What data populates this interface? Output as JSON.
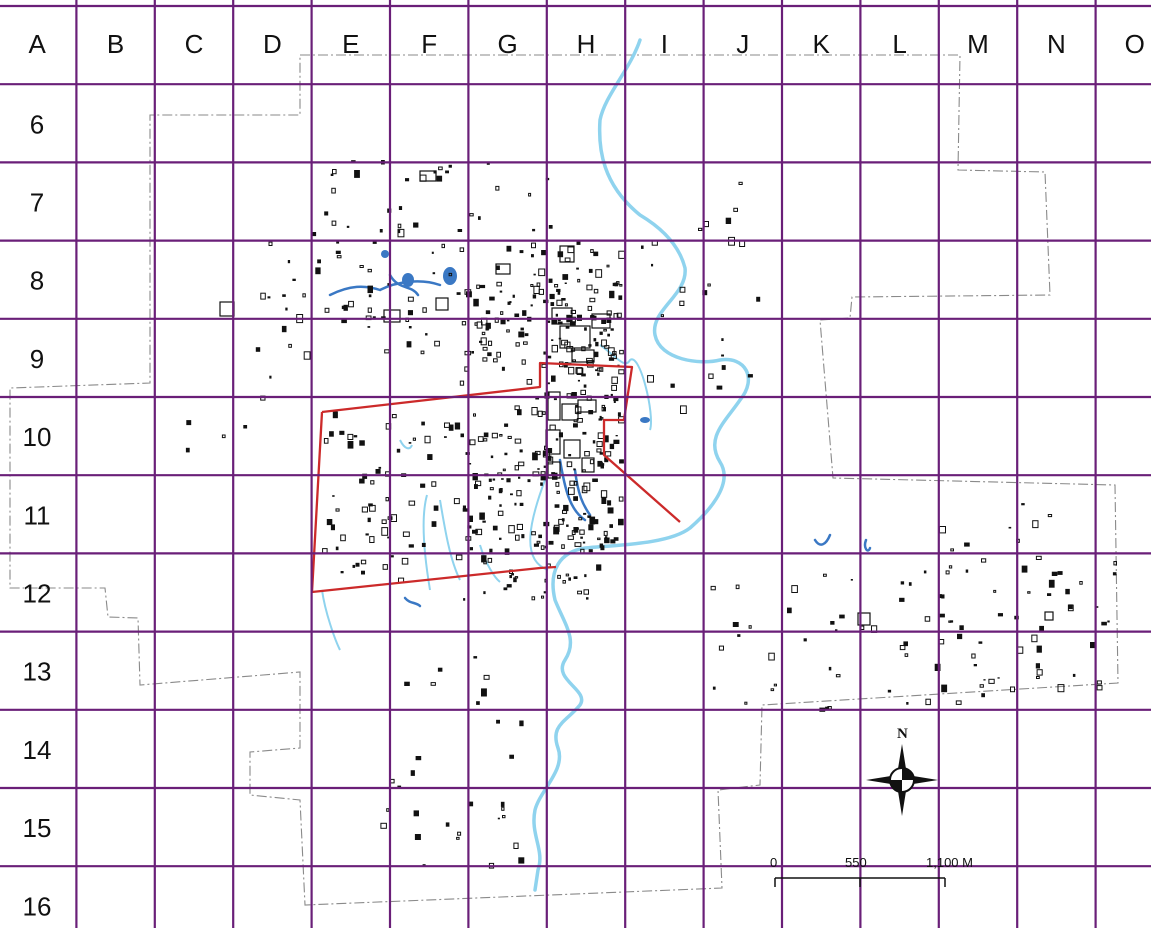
{
  "map": {
    "column_labels": [
      "A",
      "B",
      "C",
      "D",
      "E",
      "F",
      "G",
      "H",
      "I",
      "J",
      "K",
      "L",
      "M",
      "N",
      "O"
    ],
    "row_labels": [
      "6",
      "7",
      "8",
      "9",
      "10",
      "11",
      "12",
      "13",
      "14",
      "15",
      "16"
    ],
    "colors": {
      "grid": "#6a1f78",
      "river": "#8fd3ee",
      "ponds": "#3a78c4",
      "boundary": "#8a8a8a",
      "study_area": "#cc2a2a",
      "structures": "#111111"
    },
    "north_arrow": {
      "label": "N"
    },
    "scale_bar": {
      "labels": [
        "0",
        "550",
        "1,100 M"
      ]
    }
  }
}
